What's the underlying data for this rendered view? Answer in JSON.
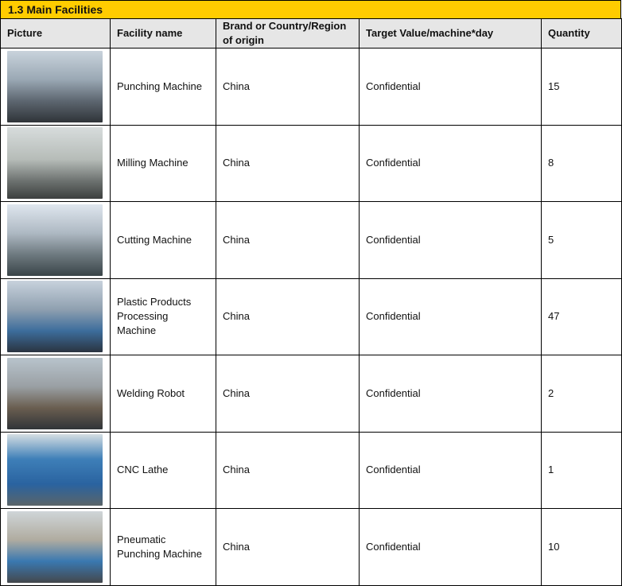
{
  "title": "1.3 Main Facilities",
  "colors": {
    "title_bar": "#FFCC00",
    "header_bg": "#E6E6E6"
  },
  "headers": [
    "Picture",
    "Facility name",
    "Brand or Country/Region of origin",
    "Target Value/machine*day",
    "Quantity"
  ],
  "rows": [
    {
      "name": "Punching Machine",
      "origin": "China",
      "target": "Confidential",
      "quantity": "15"
    },
    {
      "name": "Milling Machine",
      "origin": "China",
      "target": "Confidential",
      "quantity": "8"
    },
    {
      "name": "Cutting Machine",
      "origin": "China",
      "target": "Confidential",
      "quantity": "5"
    },
    {
      "name": "Plastic Products Processing Machine",
      "origin": "China",
      "target": "Confidential",
      "quantity": "47"
    },
    {
      "name": "Welding Robot",
      "origin": "China",
      "target": "Confidential",
      "quantity": "2"
    },
    {
      "name": "CNC Lathe",
      "origin": "China",
      "target": "Confidential",
      "quantity": "1"
    },
    {
      "name": "Pneumatic Punching Machine",
      "origin": "China",
      "target": "Confidential",
      "quantity": "10"
    }
  ]
}
